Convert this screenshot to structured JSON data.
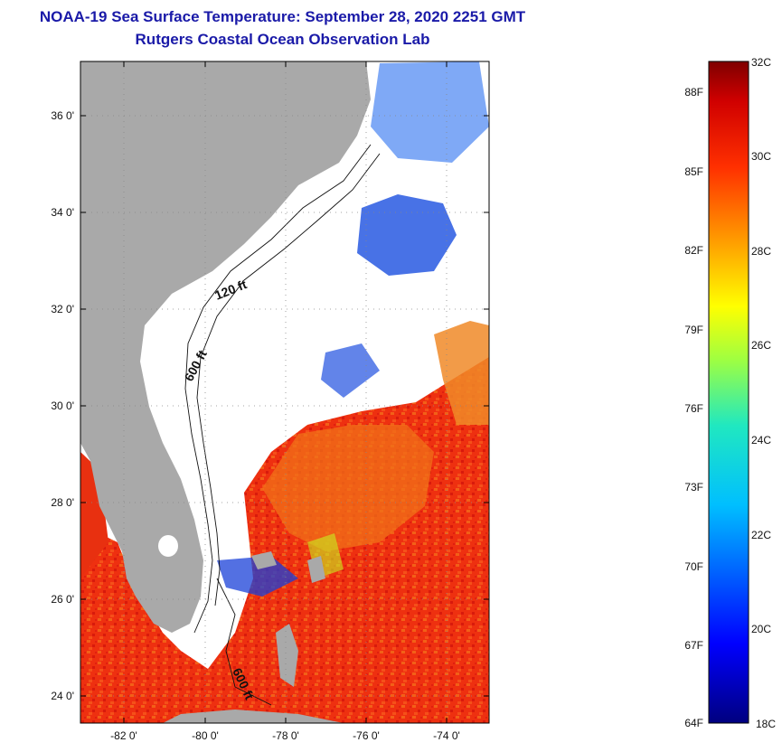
{
  "title": {
    "line1": "NOAA-19 Sea Surface Temperature:  September 28, 2020 2251 GMT",
    "line2": "Rutgers Coastal Ocean Observation Lab"
  },
  "map": {
    "lon_ticks": [
      "-82 0'",
      "-80 0'",
      "-78 0'",
      "-76 0'",
      "-74 0'"
    ],
    "lat_ticks": [
      "36 0'",
      "34 0'",
      "32 0'",
      "30 0'",
      "28 0'",
      "26 0'",
      "24 0'"
    ],
    "contour_labels": [
      "120 ft",
      "600 ft",
      "600 ft"
    ],
    "colors": {
      "land": "#a9a9a9",
      "no_data": "#ffffff",
      "warm": "#ee2a10",
      "hot": "#c80c0c"
    }
  },
  "colorbar": {
    "fahrenheit": [
      "88F",
      "85F",
      "82F",
      "79F",
      "76F",
      "73F",
      "70F",
      "67F",
      "64F"
    ],
    "celsius": [
      "32C",
      "30C",
      "28C",
      "26C",
      "24C",
      "22C",
      "20C",
      "18C"
    ]
  }
}
